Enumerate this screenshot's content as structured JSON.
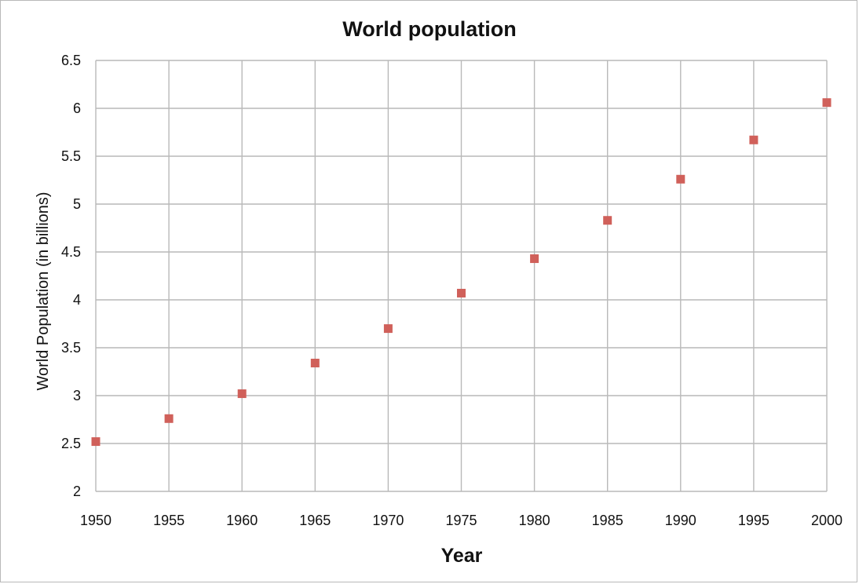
{
  "chart_data": {
    "type": "scatter",
    "title": "World population",
    "xlabel": "Year",
    "ylabel": "World Population (in billions)",
    "xlim": [
      1950,
      2000
    ],
    "ylim": [
      2,
      6.5
    ],
    "x_ticks": [
      "1950",
      "1955",
      "1960",
      "1965",
      "1970",
      "1975",
      "1980",
      "1985",
      "1990",
      "1995",
      "2000"
    ],
    "y_ticks": [
      "2",
      "2.5",
      "3",
      "3.5",
      "4",
      "4.5",
      "5",
      "5.5",
      "6",
      "6.5"
    ],
    "grid": true,
    "legend": "none",
    "marker": "square",
    "color": "#d0605a",
    "series": [
      {
        "x": [
          1950,
          1955,
          1960,
          1965,
          1970,
          1975,
          1980,
          1985,
          1990,
          1995,
          2000
        ],
        "y": [
          2.52,
          2.76,
          3.02,
          3.34,
          3.7,
          4.07,
          4.43,
          4.83,
          5.26,
          5.67,
          6.06
        ]
      }
    ]
  }
}
